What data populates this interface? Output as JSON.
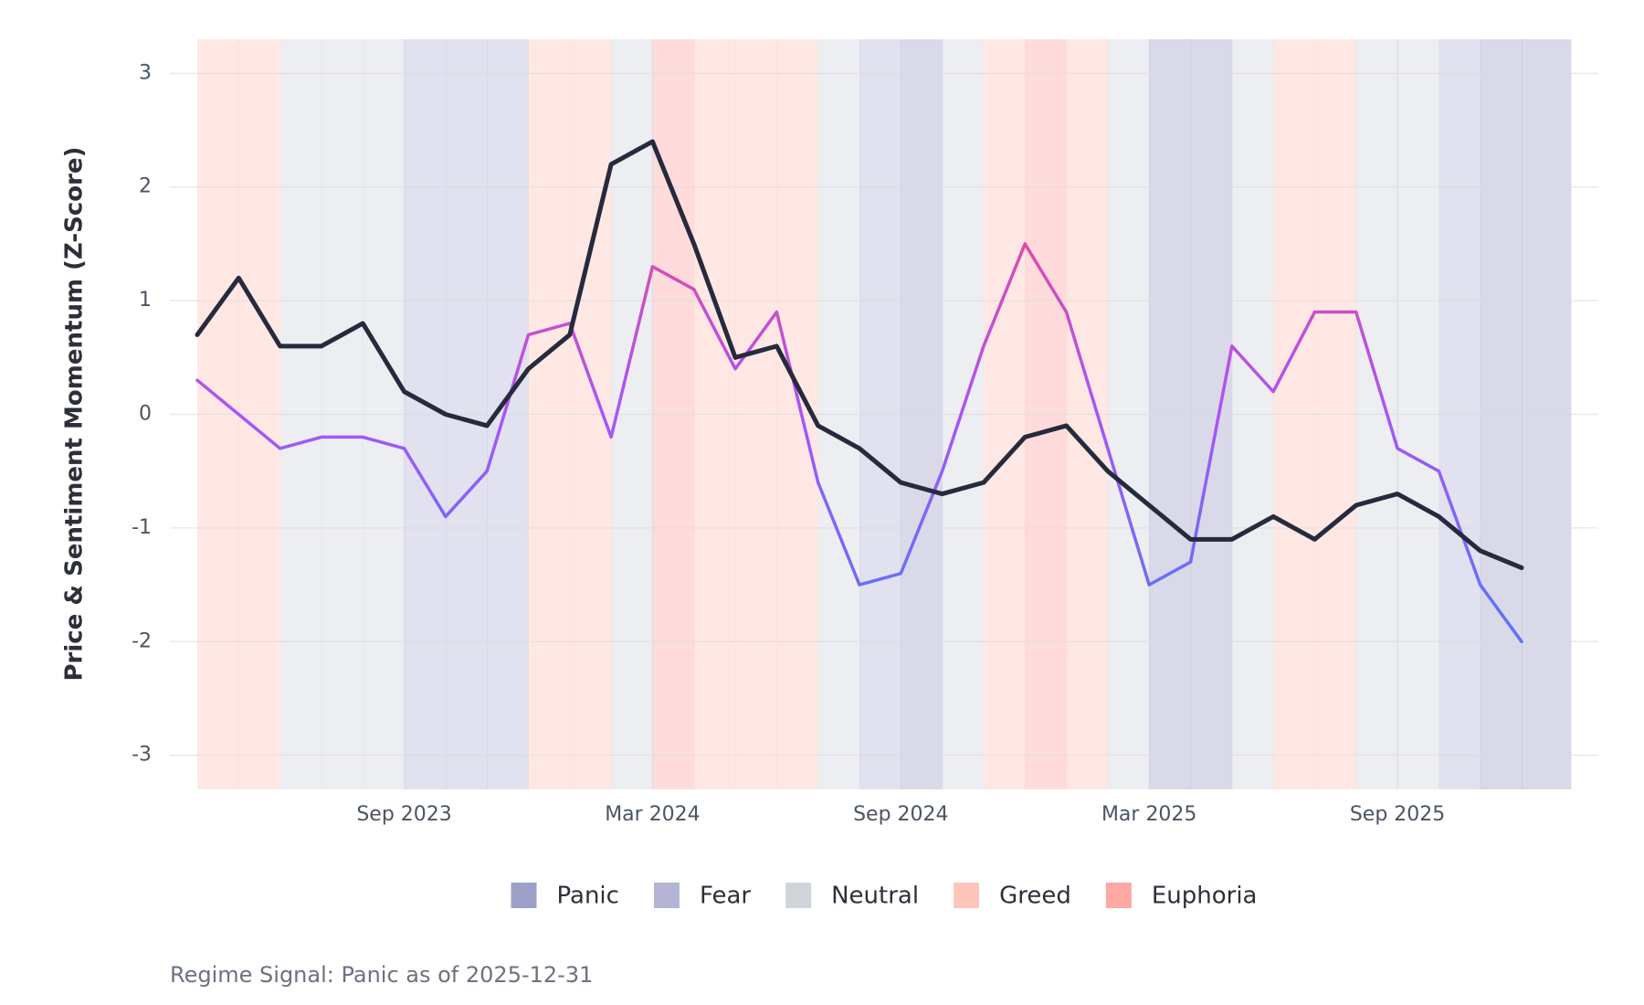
{
  "chart_data": {
    "type": "line",
    "y_label": "Price & Sentiment Momentum (Z-Score)",
    "caption": "Regime Signal: Panic as of 2025-12-31",
    "x": [
      "2023-04",
      "2023-05",
      "2023-06",
      "2023-07",
      "2023-08",
      "2023-09",
      "2023-10",
      "2023-11",
      "2023-12",
      "2024-01",
      "2024-02",
      "2024-03",
      "2024-04",
      "2024-05",
      "2024-06",
      "2024-07",
      "2024-08",
      "2024-09",
      "2024-10",
      "2024-11",
      "2024-12",
      "2025-01",
      "2025-02",
      "2025-03",
      "2025-04",
      "2025-05",
      "2025-06",
      "2025-07",
      "2025-08",
      "2025-09",
      "2025-10",
      "2025-11",
      "2025-12"
    ],
    "series": [
      {
        "name": "Sentiment",
        "colors": [
          "#3b82f6",
          "#a855f7",
          "#ec4899"
        ],
        "values": [
          0.3,
          0.0,
          -0.3,
          -0.2,
          -0.2,
          -0.3,
          -0.9,
          -0.5,
          0.7,
          0.8,
          -0.2,
          1.3,
          1.1,
          0.4,
          0.9,
          -0.6,
          -1.5,
          -1.4,
          -0.5,
          0.6,
          1.5,
          0.9,
          -0.3,
          -1.5,
          -1.3,
          0.6,
          0.2,
          0.9,
          0.9,
          -0.3,
          -0.5,
          -1.5,
          -2.0
        ]
      },
      {
        "name": "Price",
        "color": "#262a3d",
        "values": [
          0.7,
          1.2,
          0.6,
          0.6,
          0.8,
          0.2,
          0.0,
          -0.1,
          0.4,
          0.7,
          2.2,
          2.4,
          1.5,
          0.5,
          0.6,
          -0.1,
          -0.3,
          -0.6,
          -0.7,
          -0.6,
          -0.2,
          -0.1,
          -0.5,
          -0.8,
          -1.1,
          -1.1,
          -0.9,
          -1.1,
          -0.8,
          -0.7,
          -0.9,
          -1.2,
          -1.35
        ]
      }
    ],
    "regime": [
      "Greed",
      "Greed",
      "Neutral",
      "Neutral",
      "Neutral",
      "Fear",
      "Fear",
      "Fear",
      "Greed",
      "Greed",
      "Neutral",
      "Euphoria",
      "Greed",
      "Greed",
      "Greed",
      "Neutral",
      "Fear",
      "Panic",
      "Neutral",
      "Greed",
      "Euphoria",
      "Greed",
      "Neutral",
      "Panic",
      "Panic",
      "Neutral",
      "Greed",
      "Greed",
      "Neutral",
      "Neutral",
      "Fear",
      "Panic",
      "Panic"
    ],
    "regimes": [
      {
        "name": "Panic",
        "color": "#9fa0c8"
      },
      {
        "name": "Fear",
        "color": "#b3b4d6"
      },
      {
        "name": "Neutral",
        "color": "#d1d5db"
      },
      {
        "name": "Greed",
        "color": "#fec5bb"
      },
      {
        "name": "Euphoria",
        "color": "#fea8a4"
      }
    ],
    "xlim": [
      "2023-04",
      "2025-12"
    ],
    "xticks": [
      {
        "value": "2023-09",
        "label": "Sep 2023"
      },
      {
        "value": "2024-03",
        "label": "Mar 2024"
      },
      {
        "value": "2024-09",
        "label": "Sep 2024"
      },
      {
        "value": "2025-03",
        "label": "Mar 2025"
      },
      {
        "value": "2025-09",
        "label": "Sep 2025"
      }
    ],
    "ylim": [
      -3.3,
      3.3
    ],
    "yticks": [
      -3,
      -2,
      -1,
      0,
      1,
      2,
      3
    ],
    "grid": true
  }
}
